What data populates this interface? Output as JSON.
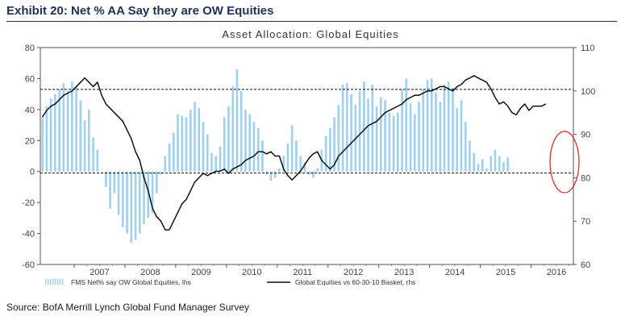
{
  "header": {
    "exhibit_title": "Exhibit 20: Net % AA Say they are OW Equities"
  },
  "footer": {
    "source": "Source: BofA Merrill Lynch Global Fund Manager Survey"
  },
  "colors": {
    "bars": "#9fd0ee",
    "line": "#111111",
    "annotation_circle": "#e0201a",
    "title": "#1f2f57"
  },
  "chart_data": {
    "type": "bar+line",
    "title": "Asset Allocation: Global Equities",
    "x_tick_labels": [
      "2007",
      "2008",
      "2009",
      "2010",
      "2011",
      "2012",
      "2013",
      "2014",
      "2015",
      "2016"
    ],
    "y_left": {
      "range": [
        -60,
        80
      ],
      "ticks": [
        "80",
        "60",
        "40",
        "20",
        "0",
        "-20",
        "-40",
        "-60"
      ]
    },
    "y_right": {
      "range": [
        60,
        110
      ],
      "ticks": [
        "110",
        "100",
        "90",
        "80",
        "70",
        "60"
      ]
    },
    "reference_lines": [
      {
        "axis": "left",
        "value": 53,
        "style": "dashed"
      },
      {
        "axis": "left",
        "value": -1,
        "style": "dashed"
      }
    ],
    "legend_placement": "bottom",
    "series": [
      {
        "name": "FMS Net% say OW Global Equities, lhs",
        "kind": "bar",
        "axis": "left",
        "start": "2006-05",
        "frequency": "monthly",
        "values": [
          35,
          42,
          47,
          50,
          53,
          57,
          52,
          58,
          55,
          46,
          33,
          40,
          22,
          14,
          0,
          -10,
          -24,
          -14,
          -28,
          -36,
          -40,
          -46,
          -44,
          -40,
          -34,
          -30,
          -27,
          -14,
          -2,
          10,
          18,
          25,
          37,
          36,
          35,
          40,
          45,
          41,
          32,
          24,
          12,
          10,
          16,
          35,
          42,
          55,
          66,
          52,
          40,
          37,
          32,
          28,
          20,
          -2,
          -6,
          -4,
          2,
          10,
          18,
          30,
          20,
          10,
          6,
          -2,
          -4,
          2,
          14,
          23,
          28,
          35,
          43,
          56,
          57,
          50,
          43,
          52,
          58,
          47,
          56,
          42,
          48,
          46,
          38,
          36,
          38,
          53,
          60,
          44,
          37,
          45,
          53,
          59,
          60,
          51,
          45,
          56,
          58,
          54,
          41,
          46,
          32,
          20,
          12,
          5,
          8,
          2,
          10,
          14,
          10,
          6,
          9
        ]
      },
      {
        "name": "Global Equities vs 60-30-10 Basket, rhs",
        "kind": "line",
        "axis": "right",
        "start": "2006-05",
        "frequency": "monthly",
        "values": [
          94,
          95.5,
          96.5,
          97,
          98,
          99,
          99.5,
          100,
          101,
          102,
          103,
          102,
          101,
          102,
          99,
          97,
          96,
          95,
          94,
          93,
          91,
          89,
          86,
          84,
          80,
          77,
          73,
          71,
          70,
          68,
          68,
          70,
          72,
          74,
          75,
          77,
          79,
          80,
          81,
          80.5,
          81,
          81.5,
          81.5,
          82,
          81,
          82,
          82.5,
          83,
          84,
          84.5,
          85,
          86,
          86,
          85.5,
          86,
          85,
          85,
          82,
          80.5,
          79.5,
          80.5,
          81.5,
          83,
          84.5,
          85.5,
          86,
          84,
          83,
          82,
          83,
          85,
          86,
          87,
          88,
          89,
          90,
          91,
          92,
          92.5,
          93,
          94,
          95,
          95.5,
          96,
          96.5,
          97,
          98,
          98.5,
          99,
          99,
          99.5,
          100,
          100,
          100.5,
          101,
          101,
          100.5,
          100,
          101,
          101.5,
          102.5,
          103,
          103.5,
          103,
          102.5,
          102,
          100.5,
          98.5,
          97,
          97.5,
          96.5,
          95,
          94.5,
          96,
          97,
          95.5,
          96.5,
          96.5,
          96.5,
          97
        ]
      }
    ]
  }
}
